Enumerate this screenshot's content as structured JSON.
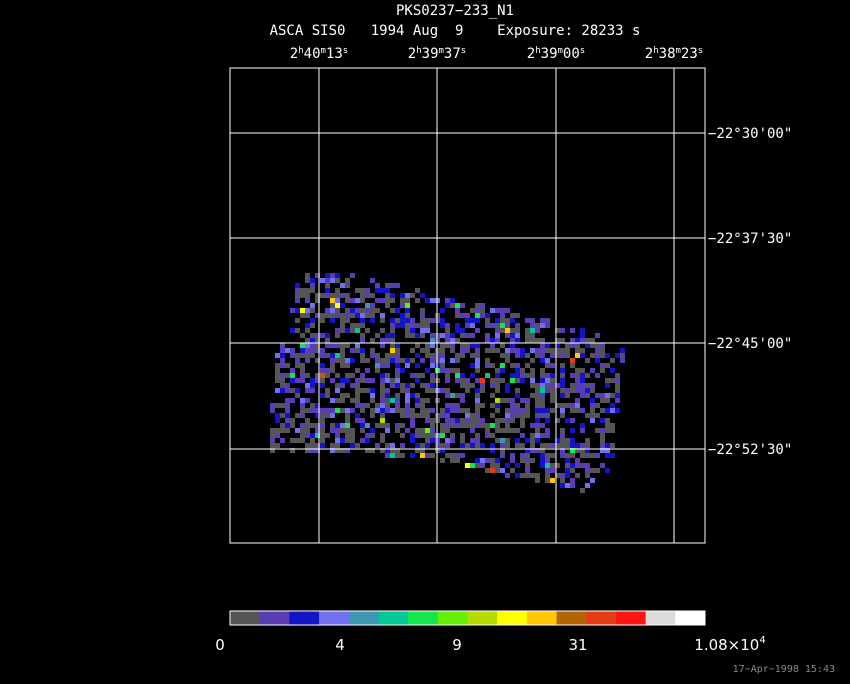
{
  "header": {
    "title": "PKS0237−233_N1",
    "subtitle": "ASCA SIS0   1994 Aug  9    Exposure: 28233 s"
  },
  "ra_ticks": [
    [
      "2",
      "h",
      "40",
      "m",
      "13",
      "s"
    ],
    [
      "2",
      "h",
      "39",
      "m",
      "37",
      "s"
    ],
    [
      "2",
      "h",
      "39",
      "m",
      "00",
      "s"
    ],
    [
      "2",
      "h",
      "38",
      "m",
      "23",
      "s"
    ]
  ],
  "dec_ticks": [
    "−22°30'00\"",
    "−22°37'30\"",
    "−22°45'00\"",
    "−22°52'30\""
  ],
  "colorbar": {
    "colors": [
      "#555555",
      "#5a3cb4",
      "#1414c8",
      "#7070f0",
      "#3c96b4",
      "#00c896",
      "#14e650",
      "#64f000",
      "#b4dc00",
      "#ffff00",
      "#ffc800",
      "#b46400",
      "#e63c14",
      "#ff1414",
      "#dcdcdc",
      "#ffffff"
    ],
    "labels": [
      [
        "0"
      ],
      [
        "4"
      ],
      [
        "9"
      ],
      [
        "31"
      ],
      [
        "1.08×10",
        "4"
      ]
    ]
  },
  "timestamp": "17−Apr−1998 15:43"
}
